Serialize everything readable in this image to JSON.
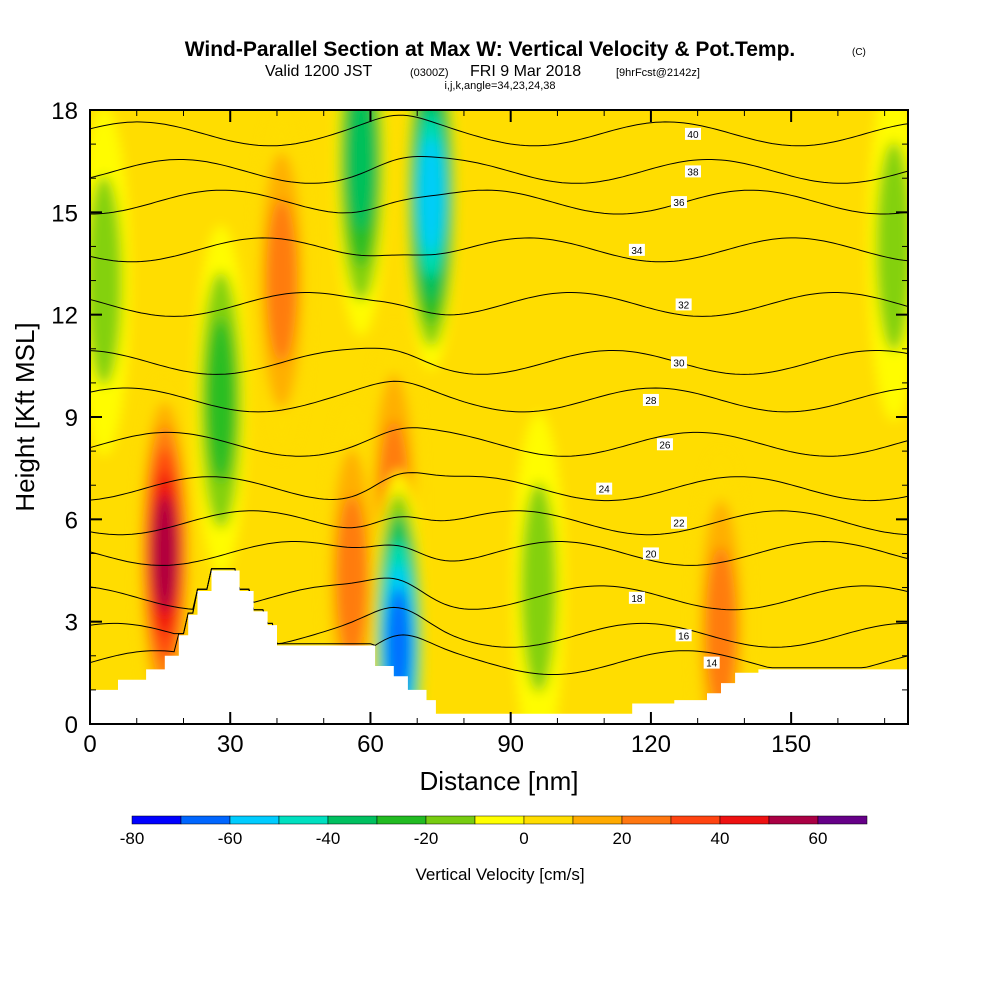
{
  "title": {
    "main": "Wind-Parallel Section at Max W: Vertical Velocity & Pot.Temp.",
    "copyright": "(C)",
    "valid_prefix": "Valid 1200 JST",
    "valid_utc": "(0300Z)",
    "valid_date": "FRI 9 Mar 2018",
    "forecast": "[9hrFcst@2142z]",
    "section_params": "i,j,k,angle=34,23,24,38"
  },
  "chart_data": {
    "type": "heatmap",
    "description_kind": "vertical cross-section with filled contours (vertical velocity) and line contours (potential temperature)",
    "xlabel": "Distance [nm]",
    "ylabel": "Height [Kft MSL]",
    "xlim": [
      0,
      175
    ],
    "ylim": [
      0,
      18
    ],
    "xticks": [
      0,
      30,
      60,
      90,
      120,
      150
    ],
    "yticks": [
      0,
      3,
      6,
      9,
      12,
      15,
      18
    ],
    "colorbar": {
      "label": "Vertical Velocity [cm/s]",
      "ticks": [
        -80,
        -60,
        -40,
        -20,
        0,
        20,
        40,
        60
      ],
      "levels": [
        -80,
        -70,
        -60,
        -50,
        -40,
        -30,
        -20,
        -10,
        0,
        10,
        20,
        30,
        40,
        50,
        60,
        70
      ],
      "colors": [
        "#0000ff",
        "#0066ff",
        "#00ccff",
        "#00e0c0",
        "#00c060",
        "#22bb22",
        "#77cc11",
        "#ffff00",
        "#ffdd00",
        "#ffaa00",
        "#ff7711",
        "#ff4411",
        "#ee1111",
        "#aa0044",
        "#660088"
      ]
    },
    "theta_contours": [
      {
        "label": "14",
        "height_kft": 1.8,
        "label_x": 133
      },
      {
        "label": "16",
        "height_kft": 2.6,
        "label_x": 127
      },
      {
        "label": "18",
        "height_kft": 3.7,
        "label_x": 117
      },
      {
        "label": "20",
        "height_kft": 5.0,
        "label_x": 120
      },
      {
        "label": "22",
        "height_kft": 5.9,
        "label_x": 126
      },
      {
        "label": "24",
        "height_kft": 6.9,
        "label_x": 110
      },
      {
        "label": "26",
        "height_kft": 8.2,
        "label_x": 123
      },
      {
        "label": "28",
        "height_kft": 9.5,
        "label_x": 120
      },
      {
        "label": "30",
        "height_kft": 10.6,
        "label_x": 126
      },
      {
        "label": "32",
        "height_kft": 12.3,
        "label_x": 127
      },
      {
        "label": "34",
        "height_kft": 13.9,
        "label_x": 117
      },
      {
        "label": "36",
        "height_kft": 15.3,
        "label_x": 126
      },
      {
        "label": "38",
        "height_kft": 16.2,
        "label_x": 129
      },
      {
        "label": "40",
        "height_kft": 17.3,
        "label_x": 129
      }
    ],
    "terrain_kft": [
      [
        0,
        1.0
      ],
      [
        6,
        1.0
      ],
      [
        6,
        1.3
      ],
      [
        12,
        1.3
      ],
      [
        12,
        1.6
      ],
      [
        16,
        1.6
      ],
      [
        16,
        2.0
      ],
      [
        19,
        2.0
      ],
      [
        19,
        2.6
      ],
      [
        21,
        2.6
      ],
      [
        21,
        3.2
      ],
      [
        23,
        3.2
      ],
      [
        23,
        3.9
      ],
      [
        26,
        3.9
      ],
      [
        26,
        4.5
      ],
      [
        32,
        4.5
      ],
      [
        32,
        3.9
      ],
      [
        35,
        3.9
      ],
      [
        35,
        3.3
      ],
      [
        38,
        3.3
      ],
      [
        38,
        2.9
      ],
      [
        40,
        2.9
      ],
      [
        40,
        2.3
      ],
      [
        61,
        2.3
      ],
      [
        61,
        1.7
      ],
      [
        65,
        1.7
      ],
      [
        65,
        1.4
      ],
      [
        68,
        1.4
      ],
      [
        68,
        1.0
      ],
      [
        72,
        1.0
      ],
      [
        72,
        0.7
      ],
      [
        74,
        0.7
      ],
      [
        74,
        0.3
      ],
      [
        116,
        0.3
      ],
      [
        116,
        0.6
      ],
      [
        125,
        0.6
      ],
      [
        125,
        0.7
      ],
      [
        132,
        0.7
      ],
      [
        132,
        0.9
      ],
      [
        135,
        0.9
      ],
      [
        135,
        1.2
      ],
      [
        138,
        1.2
      ],
      [
        138,
        1.5
      ],
      [
        143,
        1.5
      ],
      [
        143,
        1.6
      ],
      [
        175,
        1.6
      ]
    ],
    "w_features_cm_s": [
      {
        "x": 16,
        "y": 5.0,
        "value": 70
      },
      {
        "x": 41,
        "y": 13.0,
        "value": 40
      },
      {
        "x": 65,
        "y": 6.5,
        "value": 40
      },
      {
        "x": 56,
        "y": 4.3,
        "value": 40
      },
      {
        "x": 73,
        "y": 15.5,
        "value": -70
      },
      {
        "x": 58,
        "y": 16.5,
        "value": -50
      },
      {
        "x": 66,
        "y": 2.3,
        "value": -80
      },
      {
        "x": 3,
        "y": 13.0,
        "value": -20
      },
      {
        "x": 172,
        "y": 14.0,
        "value": -20
      },
      {
        "x": 135,
        "y": 2.8,
        "value": 30
      },
      {
        "x": 28,
        "y": 9.5,
        "value": -30
      },
      {
        "x": 96,
        "y": 4.0,
        "value": -20
      }
    ]
  }
}
